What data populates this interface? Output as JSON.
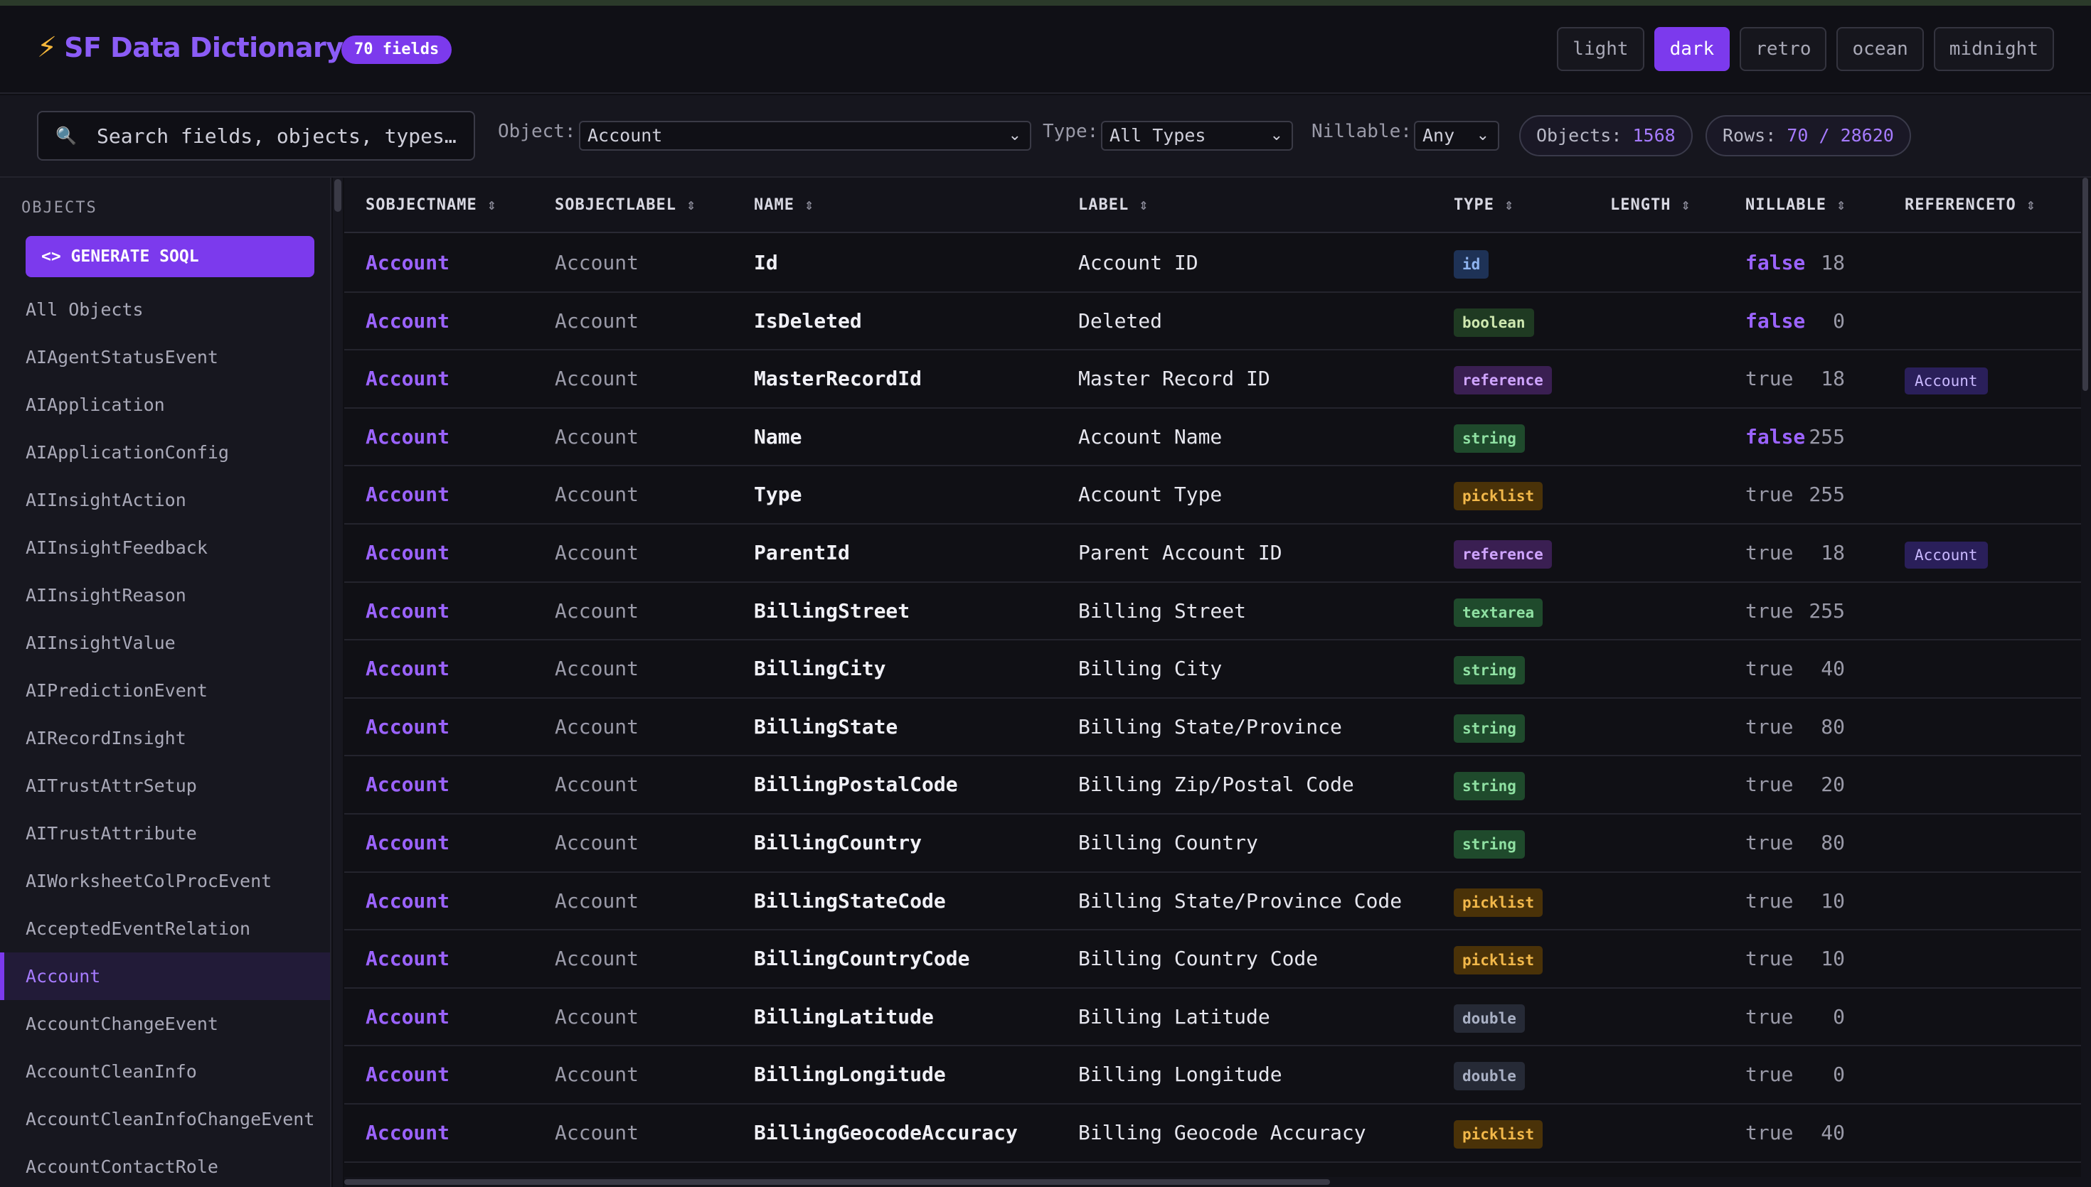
{
  "app": {
    "title": "SF Data Dictionary",
    "fields_badge": "70 fields"
  },
  "themes": [
    "light",
    "dark",
    "retro",
    "ocean",
    "midnight"
  ],
  "active_theme": "dark",
  "filters": {
    "search_placeholder": "Search fields, objects, types…",
    "object_label": "Object:",
    "object_value": "Account",
    "type_label": "Type:",
    "type_value": "All Types",
    "nillable_label": "Nillable:",
    "nillable_value": "Any",
    "objects_label": "Objects:",
    "objects_count": "1568",
    "rows_label": "Rows:",
    "rows_count": "70 / 28620"
  },
  "sidebar": {
    "heading": "OBJECTS",
    "generate_label": "<> GENERATE SOQL",
    "items": [
      "All Objects",
      "AIAgentStatusEvent",
      "AIApplication",
      "AIApplicationConfig",
      "AIInsightAction",
      "AIInsightFeedback",
      "AIInsightReason",
      "AIInsightValue",
      "AIPredictionEvent",
      "AIRecordInsight",
      "AITrustAttrSetup",
      "AITrustAttribute",
      "AIWorksheetColProcEvent",
      "AcceptedEventRelation",
      "Account",
      "AccountChangeEvent",
      "AccountCleanInfo",
      "AccountCleanInfoChangeEvent",
      "AccountContactRole"
    ],
    "active_item": "Account"
  },
  "table": {
    "columns": [
      {
        "label": "SOBJECTNAME"
      },
      {
        "label": "SOBJECTLABEL"
      },
      {
        "label": "NAME"
      },
      {
        "label": "LABEL"
      },
      {
        "label": "TYPE"
      },
      {
        "label": "LENGTH"
      },
      {
        "label": "NILLABLE"
      },
      {
        "label": "REFERENCETO"
      }
    ],
    "rows": [
      {
        "sobject": "Account",
        "slabel": "Account",
        "name": "Id",
        "label": "Account ID",
        "type": "id",
        "length": "18",
        "nillable": "false",
        "ref": ""
      },
      {
        "sobject": "Account",
        "slabel": "Account",
        "name": "IsDeleted",
        "label": "Deleted",
        "type": "boolean",
        "length": "0",
        "nillable": "false",
        "ref": ""
      },
      {
        "sobject": "Account",
        "slabel": "Account",
        "name": "MasterRecordId",
        "label": "Master Record ID",
        "type": "reference",
        "length": "18",
        "nillable": "true",
        "ref": "Account"
      },
      {
        "sobject": "Account",
        "slabel": "Account",
        "name": "Name",
        "label": "Account Name",
        "type": "string",
        "length": "255",
        "nillable": "false",
        "ref": ""
      },
      {
        "sobject": "Account",
        "slabel": "Account",
        "name": "Type",
        "label": "Account Type",
        "type": "picklist",
        "length": "255",
        "nillable": "true",
        "ref": ""
      },
      {
        "sobject": "Account",
        "slabel": "Account",
        "name": "ParentId",
        "label": "Parent Account ID",
        "type": "reference",
        "length": "18",
        "nillable": "true",
        "ref": "Account"
      },
      {
        "sobject": "Account",
        "slabel": "Account",
        "name": "BillingStreet",
        "label": "Billing Street",
        "type": "textarea",
        "length": "255",
        "nillable": "true",
        "ref": ""
      },
      {
        "sobject": "Account",
        "slabel": "Account",
        "name": "BillingCity",
        "label": "Billing City",
        "type": "string",
        "length": "40",
        "nillable": "true",
        "ref": ""
      },
      {
        "sobject": "Account",
        "slabel": "Account",
        "name": "BillingState",
        "label": "Billing State/Province",
        "type": "string",
        "length": "80",
        "nillable": "true",
        "ref": ""
      },
      {
        "sobject": "Account",
        "slabel": "Account",
        "name": "BillingPostalCode",
        "label": "Billing Zip/Postal Code",
        "type": "string",
        "length": "20",
        "nillable": "true",
        "ref": ""
      },
      {
        "sobject": "Account",
        "slabel": "Account",
        "name": "BillingCountry",
        "label": "Billing Country",
        "type": "string",
        "length": "80",
        "nillable": "true",
        "ref": ""
      },
      {
        "sobject": "Account",
        "slabel": "Account",
        "name": "BillingStateCode",
        "label": "Billing State/Province Code",
        "type": "picklist",
        "length": "10",
        "nillable": "true",
        "ref": ""
      },
      {
        "sobject": "Account",
        "slabel": "Account",
        "name": "BillingCountryCode",
        "label": "Billing Country Code",
        "type": "picklist",
        "length": "10",
        "nillable": "true",
        "ref": ""
      },
      {
        "sobject": "Account",
        "slabel": "Account",
        "name": "BillingLatitude",
        "label": "Billing Latitude",
        "type": "double",
        "length": "0",
        "nillable": "true",
        "ref": ""
      },
      {
        "sobject": "Account",
        "slabel": "Account",
        "name": "BillingLongitude",
        "label": "Billing Longitude",
        "type": "double",
        "length": "0",
        "nillable": "true",
        "ref": ""
      },
      {
        "sobject": "Account",
        "slabel": "Account",
        "name": "BillingGeocodeAccuracy",
        "label": "Billing Geocode Accuracy",
        "type": "picklist",
        "length": "40",
        "nillable": "true",
        "ref": ""
      }
    ]
  },
  "colors": {
    "accent": "#7c3aed",
    "background": "#0f0f14"
  },
  "icons": {
    "brand": "lightning-bolt-icon",
    "search": "search-icon",
    "sort": "sort-icon",
    "dropdown": "chevron-down-icon"
  }
}
